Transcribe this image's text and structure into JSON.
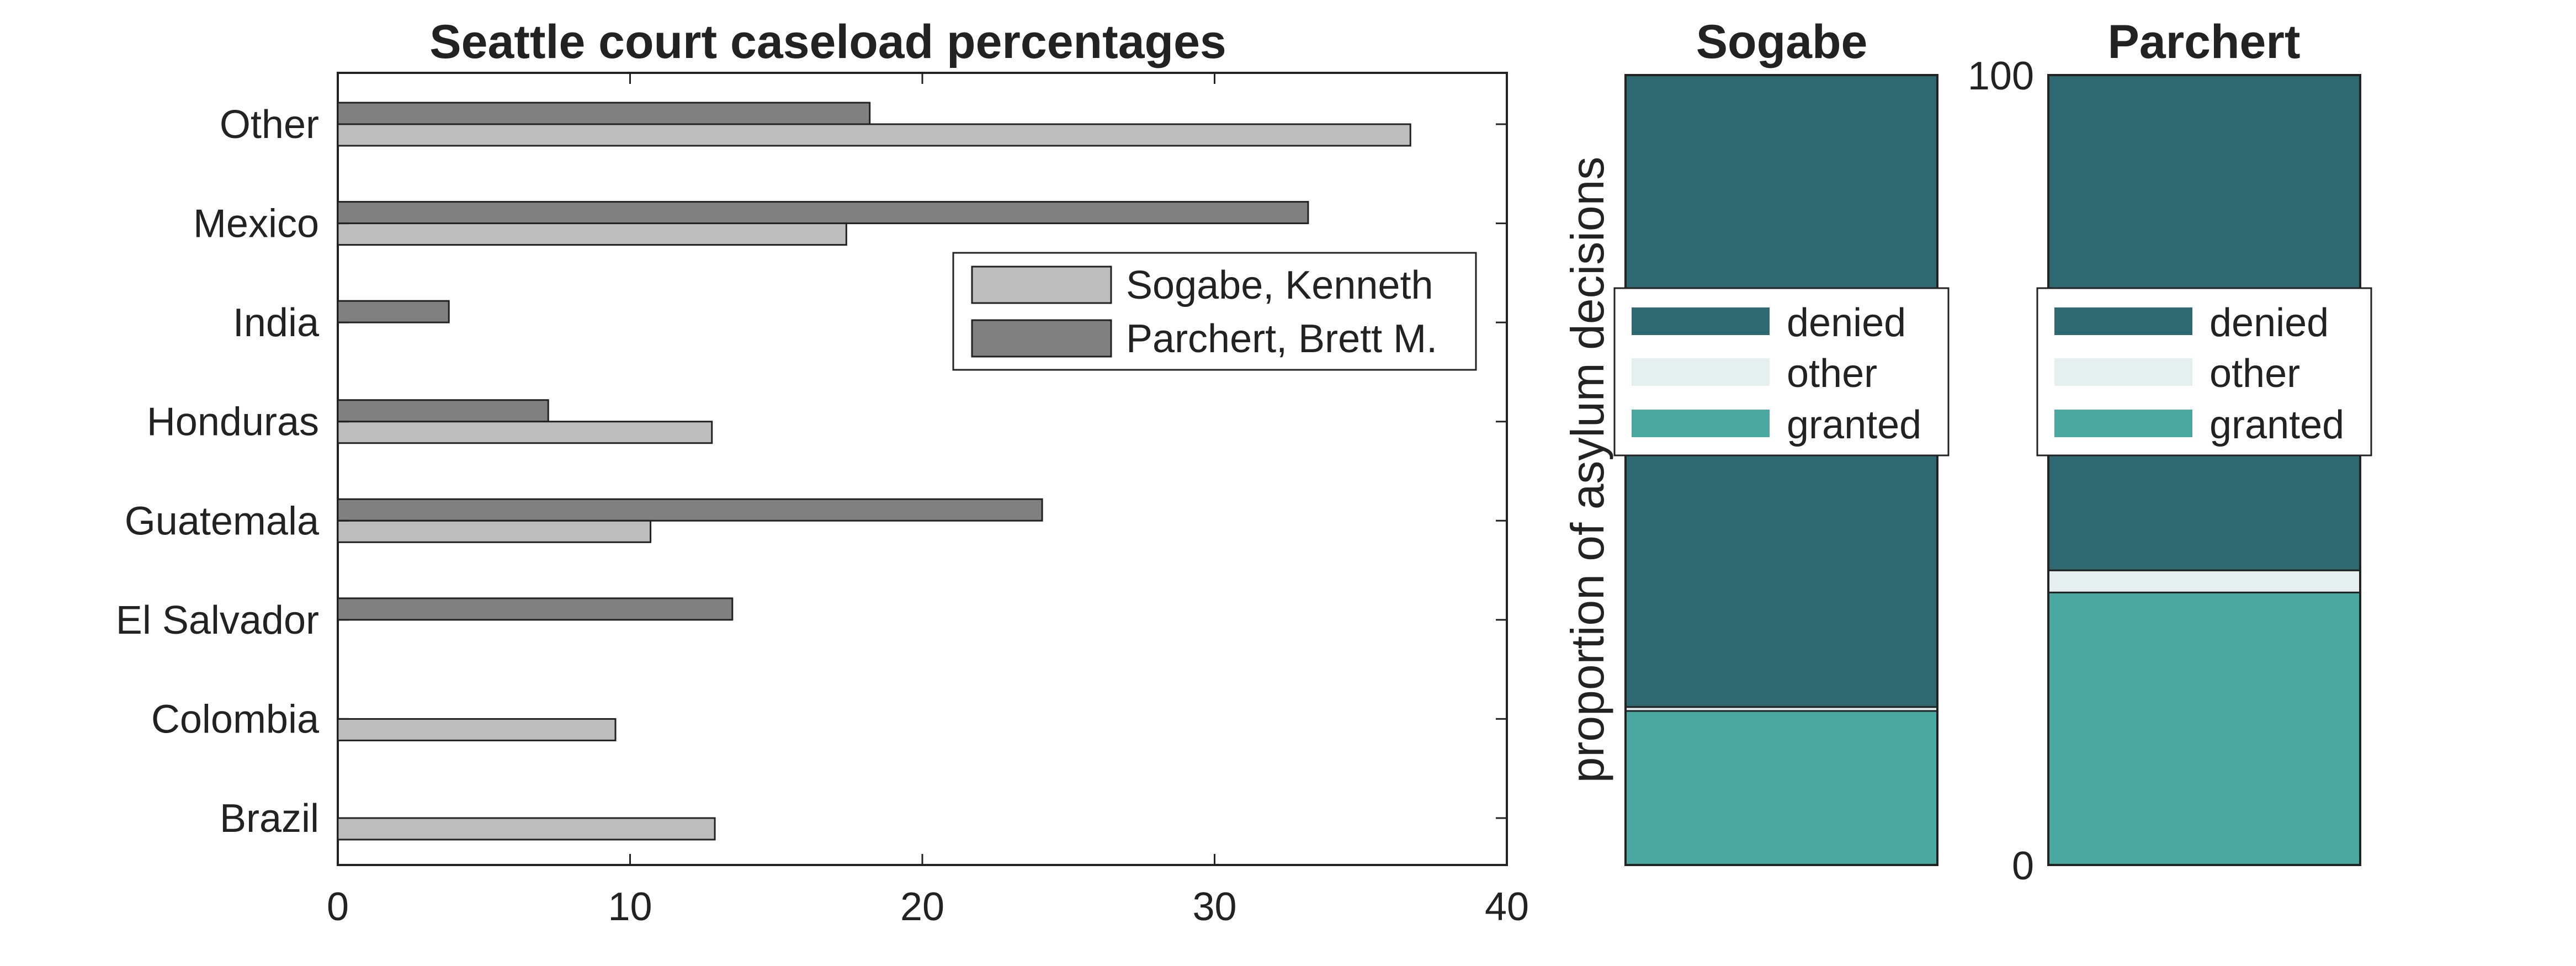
{
  "chart_data": [
    {
      "type": "bar",
      "orientation": "horizontal",
      "title": "Seattle court caseload percentages",
      "xlabel": "",
      "ylabel": "",
      "xlim": [
        0,
        40
      ],
      "xticks": [
        0,
        10,
        20,
        30,
        40
      ],
      "categories": [
        "Other",
        "Mexico",
        "India",
        "Honduras",
        "Guatemala",
        "El Salvador",
        "Colombia",
        "Brazil"
      ],
      "series": [
        {
          "name": "Sogabe, Kenneth",
          "color": "#bdbdbd",
          "values": [
            36.7,
            17.4,
            0,
            12.8,
            10.7,
            0,
            9.5,
            12.9
          ]
        },
        {
          "name": "Parchert, Brett M.",
          "color": "#808080",
          "values": [
            18.2,
            33.2,
            3.8,
            7.2,
            24.1,
            13.5,
            0,
            0
          ]
        }
      ],
      "legend": "inside-upper-right",
      "grid": false
    },
    {
      "type": "bar",
      "stacked": true,
      "title": "Sogabe",
      "ylabel": "proportion of asylum decisions",
      "ylim": [
        0,
        100
      ],
      "segments": [
        {
          "name": "granted",
          "color": "#4aa8a0",
          "value": 19.5
        },
        {
          "name": "other",
          "color": "#e5eff0",
          "value": 0.5
        },
        {
          "name": "denied",
          "color": "#2e6870",
          "value": 80.0
        }
      ],
      "legend": "center"
    },
    {
      "type": "bar",
      "stacked": true,
      "title": "Parchert",
      "ylim": [
        0,
        100
      ],
      "yticks": [
        0,
        100
      ],
      "segments": [
        {
          "name": "granted",
          "color": "#4aa8a0",
          "value": 34.5
        },
        {
          "name": "other",
          "color": "#e5eff0",
          "value": 2.8
        },
        {
          "name": "denied",
          "color": "#2e6870",
          "value": 62.7
        }
      ],
      "legend": "center"
    }
  ]
}
